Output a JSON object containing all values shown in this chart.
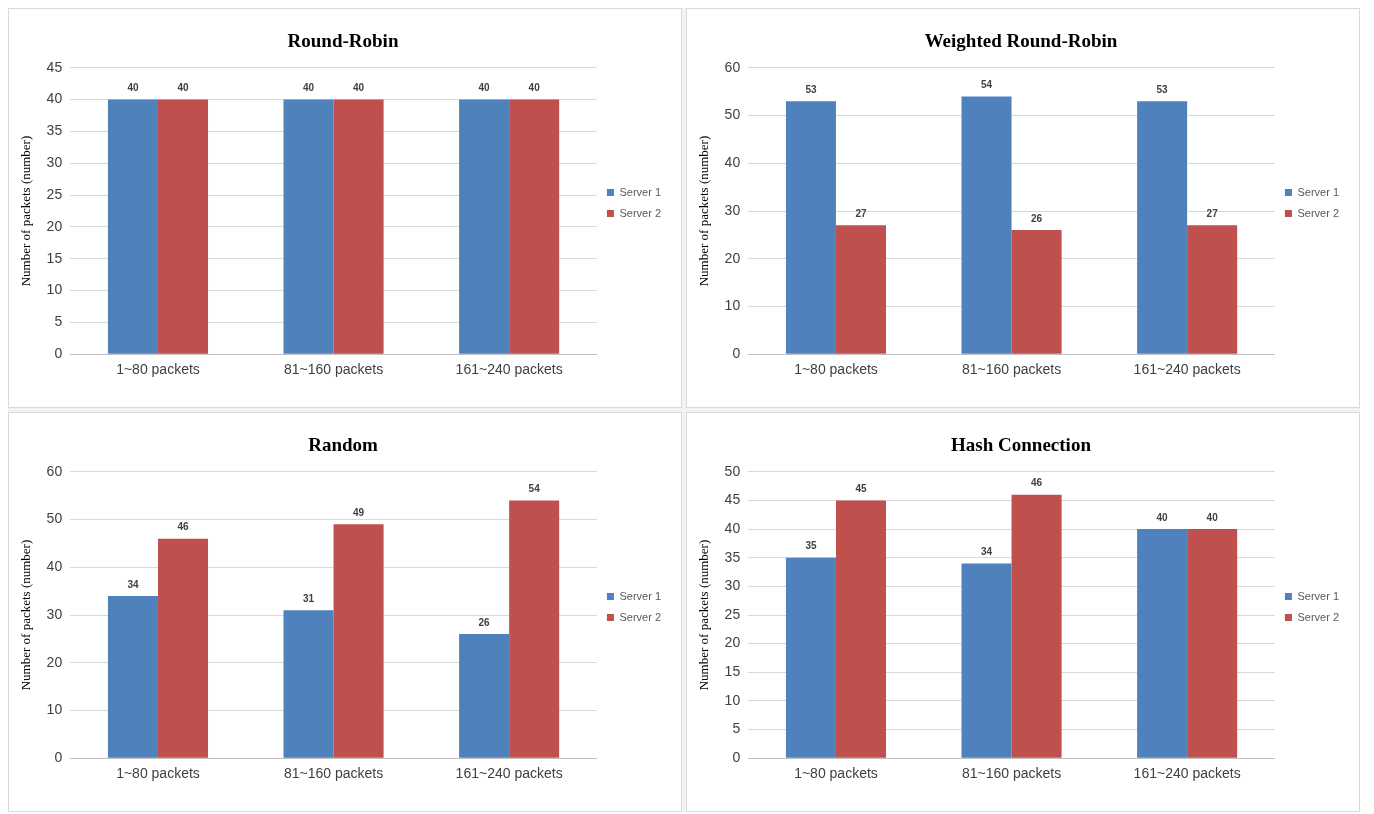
{
  "chart_data": [
    {
      "type": "bar",
      "title": "Round-Robin",
      "ylabel": "Number of packets (number)",
      "categories": [
        "1~80 packets",
        "81~160 packets",
        "161~240 packets"
      ],
      "series": [
        {
          "name": "Server 1",
          "color": "#4f81bd",
          "values": [
            40,
            40,
            40
          ]
        },
        {
          "name": "Server 2",
          "color": "#c0504d",
          "values": [
            40,
            40,
            40
          ]
        }
      ],
      "ylim": [
        0,
        45
      ],
      "yticks": [
        0,
        5,
        10,
        15,
        20,
        25,
        30,
        35,
        40,
        45
      ],
      "grid": "y",
      "legend": "right",
      "data_labels": true
    },
    {
      "type": "bar",
      "title": "Weighted Round-Robin",
      "ylabel": "Number of packets (number)",
      "categories": [
        "1~80 packets",
        "81~160 packets",
        "161~240 packets"
      ],
      "series": [
        {
          "name": "Server 1",
          "color": "#4f81bd",
          "values": [
            53,
            54,
            53
          ]
        },
        {
          "name": "Server 2",
          "color": "#c0504d",
          "values": [
            27,
            26,
            27
          ]
        }
      ],
      "ylim": [
        0,
        60
      ],
      "yticks": [
        0,
        10,
        20,
        30,
        40,
        50,
        60
      ],
      "grid": "y",
      "legend": "right",
      "data_labels": true
    },
    {
      "type": "bar",
      "title": "Random",
      "ylabel": "Number of packets (number)",
      "categories": [
        "1~80 packets",
        "81~160 packets",
        "161~240 packets"
      ],
      "series": [
        {
          "name": "Server 1",
          "color": "#4f81bd",
          "values": [
            34,
            31,
            26
          ]
        },
        {
          "name": "Server 2",
          "color": "#c0504d",
          "values": [
            46,
            49,
            54
          ]
        }
      ],
      "ylim": [
        0,
        60
      ],
      "yticks": [
        0,
        10,
        20,
        30,
        40,
        50,
        60
      ],
      "grid": "y",
      "legend": "right",
      "data_labels": true
    },
    {
      "type": "bar",
      "title": "Hash Connection",
      "ylabel": "Number of packets (number)",
      "categories": [
        "1~80 packets",
        "81~160 packets",
        "161~240 packets"
      ],
      "series": [
        {
          "name": "Server 1",
          "color": "#4f81bd",
          "values": [
            35,
            34,
            40
          ]
        },
        {
          "name": "Server 2",
          "color": "#c0504d",
          "values": [
            45,
            46,
            40
          ]
        }
      ],
      "ylim": [
        0,
        50
      ],
      "yticks": [
        0,
        5,
        10,
        15,
        20,
        25,
        30,
        35,
        40,
        45,
        50
      ],
      "grid": "y",
      "legend": "right",
      "data_labels": true
    }
  ]
}
